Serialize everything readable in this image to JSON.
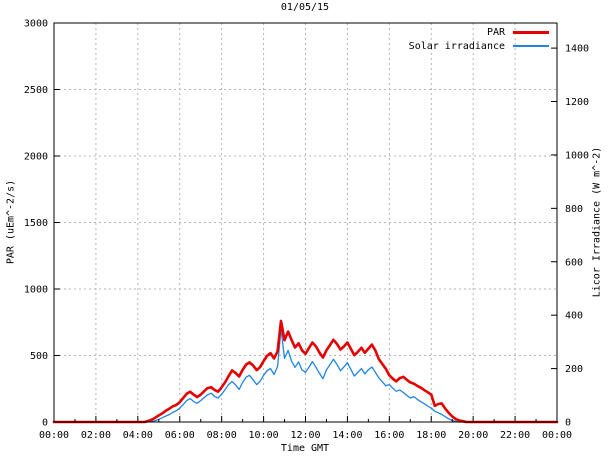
{
  "title": "01/05/15",
  "axes": {
    "left_label": "PAR (uEm^-2/s)",
    "right_label": "Licor Irradiance (W m^-2)",
    "x_label": "Time GMT"
  },
  "legend": [
    {
      "label": "PAR",
      "color": "#e60000"
    },
    {
      "label": "Solar irradiance",
      "color": "#1f85e0"
    }
  ],
  "colors": {
    "par": "#e60000",
    "solar": "#1f85e0",
    "grid": "#b4b4b4",
    "axis": "#000000",
    "text": "#000000"
  },
  "chart_data": {
    "type": "line",
    "title": "01/05/15",
    "xlabel": "Time GMT",
    "ylabel_left": "PAR (uEm^-2/s)",
    "ylabel_right": "Licor Irradiance (W m^-2)",
    "x_unit": "hours GMT",
    "xlim": [
      0,
      24
    ],
    "ylim_left": [
      0,
      3000
    ],
    "ylim_right": [
      0,
      1494
    ],
    "grid": true,
    "grid_style": "dashed gray at 2h verticals and every 500 on left axis",
    "legend_position": "top-right-inside",
    "yticks_left": [
      0,
      500,
      1000,
      1500,
      2000,
      2500,
      3000
    ],
    "yticks_right": [
      0,
      200,
      400,
      600,
      800,
      1000,
      1200,
      1400
    ],
    "xticks": [
      0,
      2,
      4,
      6,
      8,
      10,
      12,
      14,
      16,
      18,
      20,
      22,
      24
    ],
    "xtick_labels": [
      "00:00",
      "02:00",
      "04:00",
      "06:00",
      "08:00",
      "10:00",
      "12:00",
      "14:00",
      "16:00",
      "18:00",
      "20:00",
      "22:00",
      "00:00"
    ],
    "x_minor_ticks": [
      1,
      3,
      5,
      7,
      9,
      11,
      13,
      15,
      17,
      19,
      21,
      23
    ],
    "x": [
      0,
      0.17,
      0.33,
      0.5,
      0.67,
      0.83,
      1,
      1.17,
      1.33,
      1.5,
      1.67,
      1.83,
      2,
      2.17,
      2.33,
      2.5,
      2.67,
      2.83,
      3,
      3.17,
      3.33,
      3.5,
      3.67,
      3.83,
      4,
      4.17,
      4.33,
      4.5,
      4.67,
      4.83,
      5,
      5.17,
      5.33,
      5.5,
      5.67,
      5.83,
      6,
      6.17,
      6.33,
      6.5,
      6.67,
      6.83,
      7,
      7.17,
      7.33,
      7.5,
      7.67,
      7.83,
      8,
      8.17,
      8.33,
      8.5,
      8.67,
      8.83,
      9,
      9.17,
      9.33,
      9.5,
      9.67,
      9.83,
      10,
      10.17,
      10.33,
      10.5,
      10.67,
      10.83,
      11,
      11.17,
      11.33,
      11.5,
      11.67,
      11.83,
      12,
      12.17,
      12.33,
      12.5,
      12.67,
      12.83,
      13,
      13.17,
      13.33,
      13.5,
      13.67,
      13.83,
      14,
      14.17,
      14.33,
      14.5,
      14.67,
      14.83,
      15,
      15.17,
      15.33,
      15.5,
      15.67,
      15.83,
      16,
      16.17,
      16.33,
      16.5,
      16.67,
      16.83,
      17,
      17.17,
      17.33,
      17.5,
      17.67,
      17.83,
      18,
      18.17,
      18.33,
      18.5,
      18.67,
      18.83,
      19,
      19.17,
      19.33,
      19.5,
      19.67,
      19.83,
      20,
      20.17,
      20.33,
      20.5,
      20.67,
      20.83,
      21,
      21.17,
      21.33,
      21.5,
      21.67,
      21.83,
      22,
      22.17,
      22.33,
      22.5,
      22.67,
      22.83,
      23,
      23.17,
      23.33,
      23.5,
      23.67,
      23.83,
      24
    ],
    "series": [
      {
        "name": "PAR",
        "axis": "left",
        "units": "uEm^-2/s",
        "color": "#e60000",
        "line_width": 2.6,
        "values": [
          0,
          0,
          0,
          0,
          0,
          0,
          0,
          0,
          0,
          0,
          0,
          0,
          0,
          0,
          0,
          0,
          0,
          0,
          0,
          0,
          0,
          0,
          0,
          0,
          0,
          0,
          0,
          8,
          18,
          32,
          50,
          65,
          85,
          100,
          118,
          128,
          150,
          182,
          212,
          228,
          205,
          188,
          205,
          232,
          255,
          262,
          240,
          228,
          262,
          300,
          345,
          388,
          368,
          342,
          392,
          432,
          448,
          425,
          390,
          412,
          458,
          498,
          518,
          478,
          532,
          760,
          615,
          680,
          618,
          560,
          592,
          540,
          512,
          558,
          598,
          568,
          522,
          485,
          540,
          578,
          618,
          588,
          545,
          568,
          598,
          548,
          502,
          528,
          558,
          520,
          552,
          582,
          538,
          472,
          435,
          400,
          352,
          325,
          305,
          330,
          340,
          318,
          298,
          288,
          272,
          258,
          240,
          224,
          205,
          122,
          135,
          140,
          100,
          70,
          42,
          22,
          12,
          6,
          0,
          0,
          0,
          0,
          0,
          0,
          0,
          0,
          0,
          0,
          0,
          0,
          0,
          0,
          0,
          0,
          0,
          0,
          0,
          0,
          0,
          0,
          0,
          0,
          0,
          0,
          0
        ]
      },
      {
        "name": "Solar irradiance",
        "axis": "right",
        "units": "W m^-2",
        "color": "#1f85e0",
        "line_width": 1.3,
        "values": [
          0,
          0,
          0,
          0,
          0,
          0,
          0,
          0,
          0,
          0,
          0,
          0,
          0,
          0,
          0,
          0,
          0,
          0,
          0,
          0,
          0,
          0,
          0,
          0,
          0,
          0,
          0,
          0,
          2,
          5,
          10,
          16,
          22,
          28,
          36,
          42,
          52,
          66,
          80,
          88,
          76,
          70,
          80,
          92,
          102,
          108,
          95,
          90,
          104,
          122,
          140,
          152,
          138,
          122,
          148,
          168,
          175,
          158,
          140,
          152,
          175,
          192,
          200,
          178,
          208,
          350,
          238,
          268,
          228,
          205,
          225,
          196,
          186,
          206,
          226,
          205,
          182,
          162,
          196,
          215,
          235,
          216,
          192,
          206,
          222,
          196,
          172,
          186,
          200,
          180,
          196,
          206,
          186,
          165,
          150,
          136,
          140,
          126,
          115,
          120,
          110,
          100,
          90,
          95,
          85,
          76,
          68,
          60,
          52,
          40,
          35,
          28,
          20,
          12,
          6,
          2,
          0,
          0,
          0,
          0,
          0,
          0,
          0,
          0,
          0,
          0,
          0,
          0,
          0,
          0,
          0,
          0,
          0,
          0,
          0,
          0,
          0,
          0,
          0,
          0,
          0,
          0,
          0,
          0,
          0
        ]
      }
    ]
  }
}
